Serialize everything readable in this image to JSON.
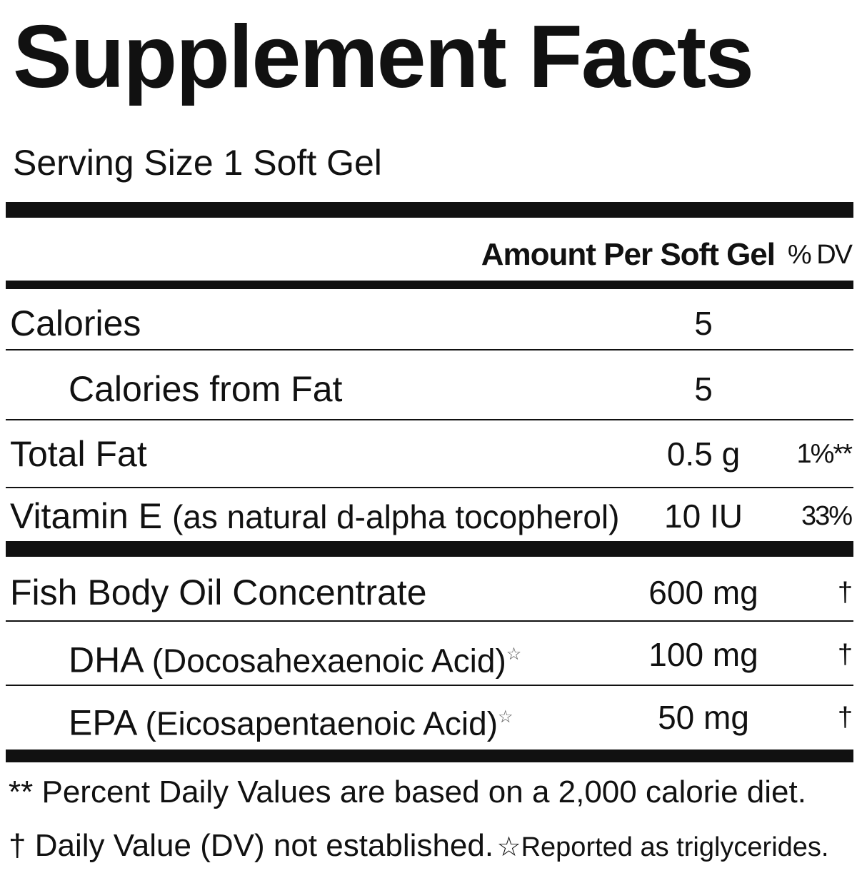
{
  "title": "Supplement Facts",
  "serving_size": "Serving Size 1 Soft Gel",
  "header": {
    "amount": "Amount Per Soft Gel",
    "dv": "% DV"
  },
  "rows": [
    {
      "name": "Calories",
      "amount": "5"
    },
    {
      "name": "Calories from Fat",
      "amount": "5"
    },
    {
      "name": "Total Fat",
      "amount": "0.5 g",
      "dv": "1%**"
    },
    {
      "name": "Vitamin E",
      "detail": "(as natural d-alpha tocopherol)",
      "amount": "10 IU",
      "dv": "33%"
    },
    {
      "name": "Fish Body Oil Concentrate",
      "amount": "600 mg",
      "dv": "†"
    },
    {
      "name": "DHA",
      "detail": "(Docosahexaenoic Acid)",
      "mark": "☆",
      "amount": "100 mg",
      "dv": "†"
    },
    {
      "name": "EPA",
      "detail": "(Eicosapentaenoic Acid)",
      "mark": "☆",
      "amount": "50 mg",
      "dv": "†"
    }
  ],
  "footnotes": [
    "** Percent Daily Values are based on a 2,000 calorie diet.",
    "† Daily Value (DV) not established.",
    "☆Reported as triglycerides."
  ]
}
